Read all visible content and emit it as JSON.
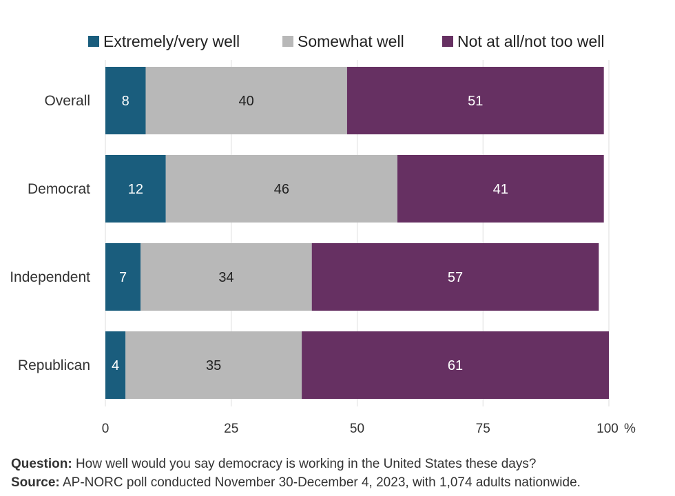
{
  "chart_data": {
    "type": "bar",
    "orientation": "horizontal",
    "stacked": true,
    "categories": [
      "Overall",
      "Democrat",
      "Independent",
      "Republican"
    ],
    "series": [
      {
        "name": "Extremely/very well",
        "color": "#1a5d7d",
        "label_color": "#ffffff",
        "values": [
          8,
          12,
          7,
          4
        ]
      },
      {
        "name": "Somewhat well",
        "color": "#b8b8b8",
        "label_color": "#222222",
        "values": [
          40,
          46,
          34,
          35
        ]
      },
      {
        "name": "Not at all/not too well",
        "color": "#663062",
        "label_color": "#ffffff",
        "values": [
          51,
          41,
          57,
          61
        ]
      }
    ],
    "xlim": [
      0,
      100
    ],
    "xticks": [
      0,
      25,
      50,
      75,
      100
    ],
    "x_unit": "%",
    "grid": true,
    "legend_position": "top"
  },
  "footer": {
    "question_label": "Question:",
    "question_text": " How well would you say democracy is working in the United States these days?",
    "source_label": "Source:",
    "source_text": " AP-NORC poll conducted November 30-December 4, 2023, with 1,074 adults nationwide."
  }
}
